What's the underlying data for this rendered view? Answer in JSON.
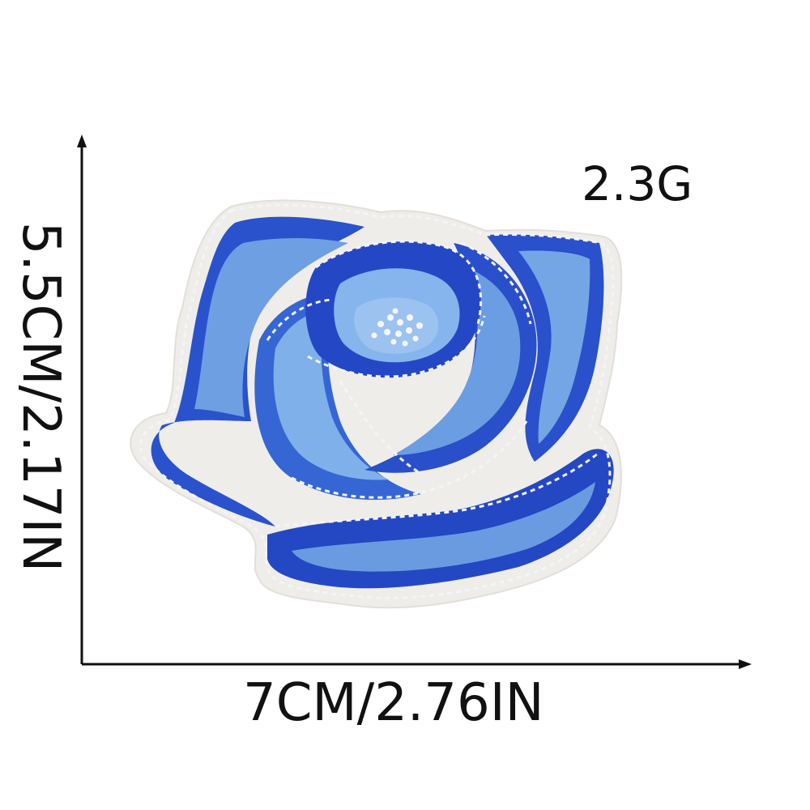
{
  "labels": {
    "weight": "2.3G",
    "width": "7CM/2.76IN",
    "height": "5.5CM/2.17IN"
  },
  "colors": {
    "background": "#ffffff",
    "axis": "#111111",
    "felt_border": "#eeece8",
    "dark_blue": "#2248c8",
    "mid_blue": "#3a72d8",
    "light_blue": "#78a8e4",
    "stitch": "#f4f4f8"
  },
  "icons": {
    "patch": "blue-rose-embroidered-patch-icon"
  }
}
